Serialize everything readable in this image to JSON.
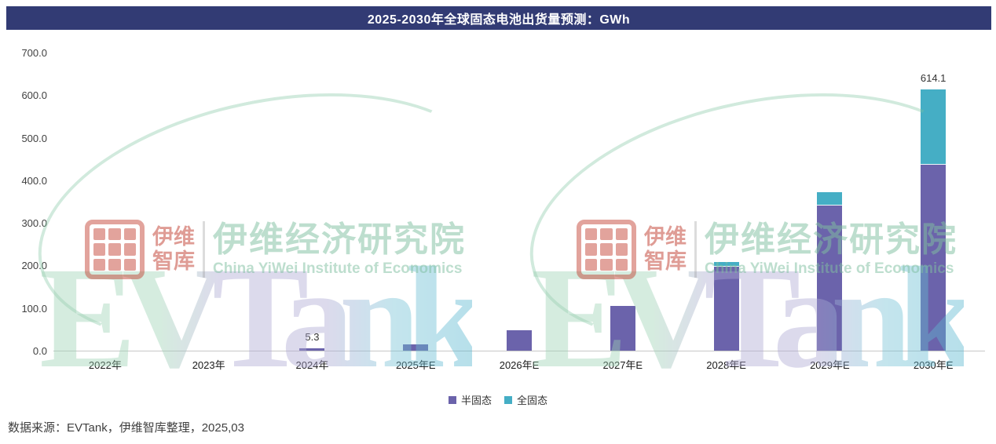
{
  "title": "2025-2030年全球固态电池出货量预测：GWh",
  "source": "数据来源：EVTank，伊维智库整理，2025,03",
  "colors": {
    "title_bar": "#323b74",
    "semi_solid": "#6b63ab",
    "all_solid": "#45aec5"
  },
  "watermark": {
    "evtank": "EVTank",
    "yiwei_line1": "伊维",
    "yiwei_line2": "智库",
    "institute_cn": "伊维经济研究院",
    "institute_en": "China YiWei Institute of Economics"
  },
  "chart_data": {
    "type": "bar",
    "stacked": true,
    "title": "2025-2030年全球固态电池出货量预测：GWh",
    "xlabel": "",
    "ylabel": "GWh",
    "ylim": [
      0,
      700
    ],
    "yticks": [
      "700.0",
      "600.0",
      "500.0",
      "400.0",
      "300.0",
      "200.0",
      "100.0",
      "0.0"
    ],
    "grid": false,
    "legend_position": "bottom",
    "categories": [
      "2022年",
      "2023年",
      "2024年",
      "2025年E",
      "2026年E",
      "2027年E",
      "2028年E",
      "2029年E",
      "2030年E"
    ],
    "series": [
      {
        "name": "半固态",
        "color": "#6b63ab",
        "values": [
          0,
          0,
          5.3,
          15,
          48,
          105,
          197,
          340,
          436
        ]
      },
      {
        "name": "全固态",
        "color": "#45aec5",
        "values": [
          0,
          0,
          0,
          0,
          0,
          0,
          11,
          32,
          178.1
        ]
      }
    ],
    "labels": [
      {
        "category": "2024年",
        "text": "5.3"
      },
      {
        "category": "2030年E",
        "text": "614.1"
      }
    ]
  }
}
